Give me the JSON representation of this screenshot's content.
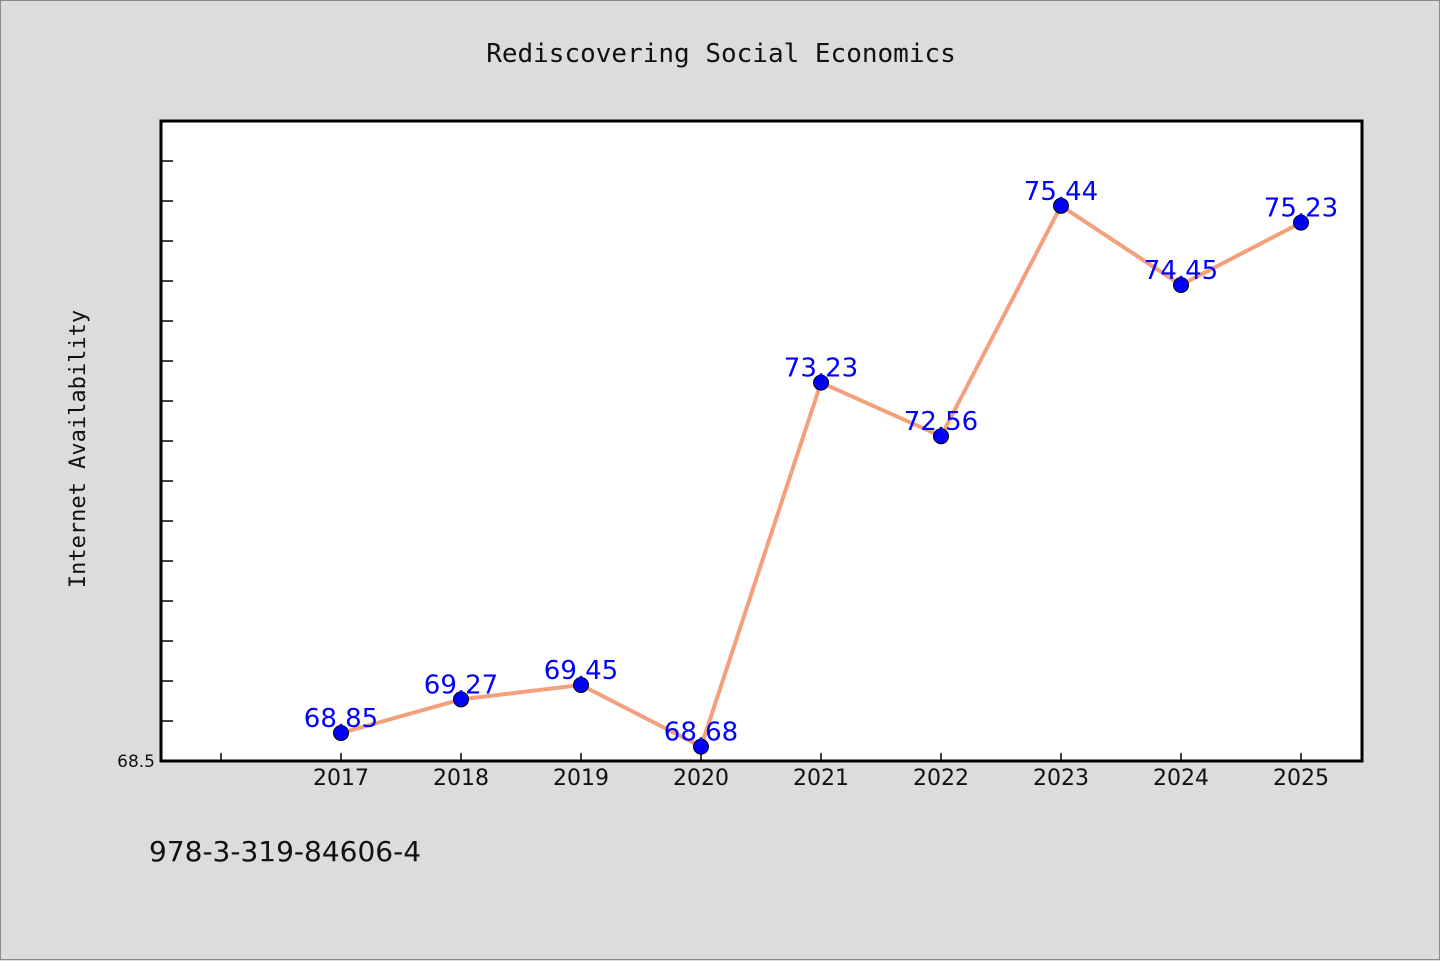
{
  "chart_data": {
    "type": "line",
    "title": "Rediscovering Social Economics",
    "xlabel": "",
    "ylabel": "Internet Availability",
    "categories": [
      "2017",
      "2018",
      "2019",
      "2020",
      "2021",
      "2022",
      "2023",
      "2024",
      "2025"
    ],
    "series": [
      {
        "values": [
          68.85,
          69.27,
          69.45,
          68.68,
          73.23,
          72.56,
          75.44,
          74.45,
          75.23
        ],
        "labels": [
          "68.85",
          "69.27",
          "69.45",
          "68.68",
          "73.23",
          "72.56",
          "75.44",
          "74.45",
          "75.23"
        ]
      }
    ],
    "ylim": [
      68.5,
      76.5
    ],
    "y_ticklabels": [
      "68.5"
    ],
    "grid": false,
    "line_color": "#f4a07c",
    "marker_color": "#0000ff",
    "label_color": "#0000ff"
  },
  "footer": {
    "identifier": "978-3-319-84606-4"
  }
}
